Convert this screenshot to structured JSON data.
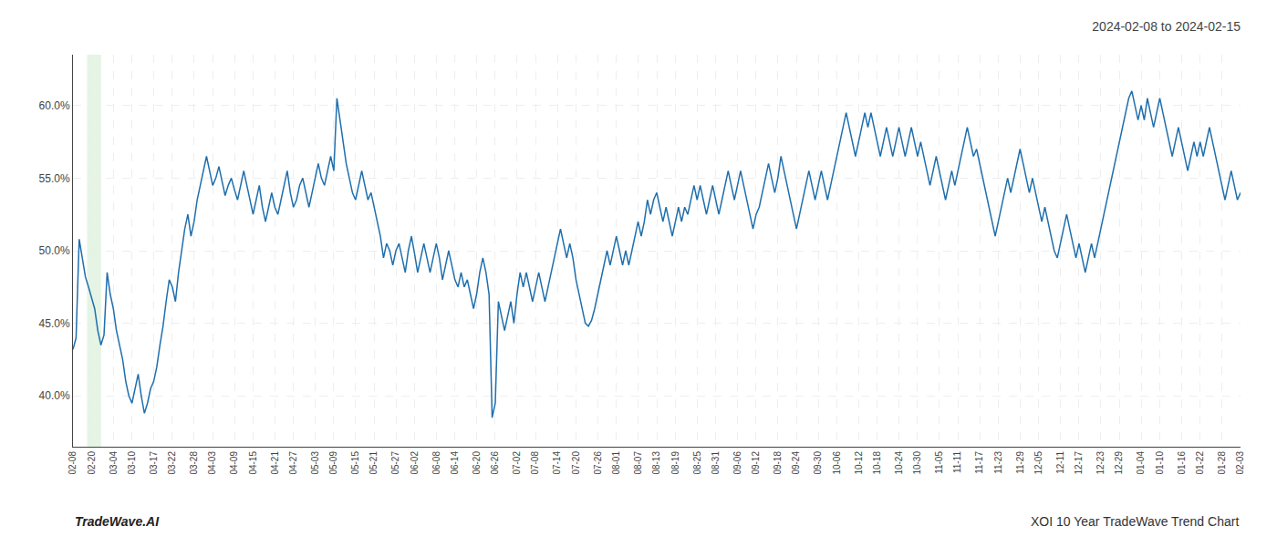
{
  "chart_data": {
    "type": "line",
    "title": "2024-02-08 to 2024-02-15",
    "annotations": [
      "TradeWave.AI",
      "XOI 10 Year TradeWave Trend Chart"
    ],
    "color": "#1f6fad",
    "grid": true,
    "ylim": [
      36.5,
      63.5
    ],
    "yticks": [
      {
        "value": 40.0,
        "label": "40.0%"
      },
      {
        "value": 45.0,
        "label": "45.0%"
      },
      {
        "value": 50.0,
        "label": "50.0%"
      },
      {
        "value": 55.0,
        "label": "55.0%"
      },
      {
        "value": 60.0,
        "label": "60.0%"
      }
    ],
    "shade": {
      "start": 4.537931034482759,
      "end": 9.07586206896552,
      "color": "#d4ecd4"
    },
    "categories": [
      "02-08",
      null,
      null,
      null,
      null,
      null,
      "02-20",
      null,
      null,
      null,
      null,
      null,
      null,
      "03-04",
      null,
      null,
      null,
      null,
      null,
      "03-10",
      null,
      null,
      null,
      null,
      null,
      null,
      "03-17",
      null,
      null,
      null,
      null,
      null,
      "03-22",
      null,
      null,
      null,
      null,
      null,
      null,
      "03-28",
      null,
      null,
      null,
      null,
      null,
      "04-03",
      null,
      null,
      null,
      null,
      null,
      null,
      "04-09",
      null,
      null,
      null,
      null,
      null,
      "04-15",
      null,
      null,
      null,
      null,
      null,
      null,
      "04-21",
      null,
      null,
      null,
      null,
      null,
      "04-27",
      null,
      null,
      null,
      null,
      null,
      null,
      "05-03",
      null,
      null,
      null,
      null,
      null,
      "05-09",
      null,
      null,
      null,
      null,
      null,
      null,
      "05-15",
      null,
      null,
      null,
      null,
      null,
      "05-21",
      null,
      null,
      null,
      null,
      null,
      null,
      "05-27",
      null,
      null,
      null,
      null,
      null,
      "06-02",
      null,
      null,
      null,
      null,
      null,
      null,
      "06-08",
      null,
      null,
      null,
      null,
      null,
      "06-14",
      null,
      null,
      null,
      null,
      null,
      null,
      "06-20",
      null,
      null,
      null,
      null,
      null,
      "06-26",
      null,
      null,
      null,
      null,
      null,
      null,
      "07-02",
      null,
      null,
      null,
      null,
      null,
      "07-08",
      null,
      null,
      null,
      null,
      null,
      null,
      "07-14",
      null,
      null,
      null,
      null,
      null,
      "07-20",
      null,
      null,
      null,
      null,
      null,
      null,
      "07-26",
      null,
      null,
      null,
      null,
      null,
      "08-01",
      null,
      null,
      null,
      null,
      null,
      null,
      "08-07",
      null,
      null,
      null,
      null,
      null,
      "08-13",
      null,
      null,
      null,
      null,
      null,
      "08-19",
      null,
      null,
      null,
      null,
      null,
      null,
      "08-25",
      null,
      null,
      null,
      null,
      null,
      "08-31",
      null,
      null,
      null,
      null,
      null,
      null,
      "09-06",
      null,
      null,
      null,
      null,
      null,
      "09-12",
      null,
      null,
      null,
      null,
      null,
      null,
      "09-18",
      null,
      null,
      null,
      null,
      null,
      "09-24",
      null,
      null,
      null,
      null,
      null,
      null,
      "09-30",
      null,
      null,
      null,
      null,
      null,
      "10-06",
      null,
      null,
      null,
      null,
      null,
      null,
      "10-12",
      null,
      null,
      null,
      null,
      null,
      "10-18",
      null,
      null,
      null,
      null,
      null,
      null,
      "10-24",
      null,
      null,
      null,
      null,
      null,
      "10-30",
      null,
      null,
      null,
      null,
      null,
      null,
      "11-05",
      null,
      null,
      null,
      null,
      null,
      "11-11",
      null,
      null,
      null,
      null,
      null,
      null,
      "11-17",
      null,
      null,
      null,
      null,
      null,
      "11-23",
      null,
      null,
      null,
      null,
      null,
      null,
      "11-29",
      null,
      null,
      null,
      null,
      null,
      "12-05",
      null,
      null,
      null,
      null,
      null,
      null,
      "12-11",
      null,
      null,
      null,
      null,
      null,
      "12-17",
      null,
      null,
      null,
      null,
      null,
      null,
      "12-23",
      null,
      null,
      null,
      null,
      null,
      "12-29",
      null,
      null,
      null,
      null,
      null,
      null,
      "01-04",
      null,
      null,
      null,
      null,
      null,
      "01-10",
      null,
      null,
      null,
      null,
      null,
      null,
      "01-16",
      null,
      null,
      null,
      null,
      null,
      "01-22",
      null,
      null,
      null,
      null,
      null,
      null,
      "01-28",
      null,
      null,
      null,
      null,
      null,
      "02-03"
    ],
    "values": [
      43.2,
      44.0,
      50.8,
      49.5,
      48.2,
      47.5,
      46.8,
      46.0,
      44.5,
      43.5,
      44.2,
      48.5,
      47.0,
      46.0,
      44.5,
      43.5,
      42.5,
      41.0,
      40.0,
      39.5,
      40.5,
      41.5,
      40.0,
      38.8,
      39.5,
      40.5,
      41.0,
      42.0,
      43.5,
      44.8,
      46.5,
      48.0,
      47.5,
      46.5,
      48.5,
      50.0,
      51.5,
      52.5,
      51.0,
      52.0,
      53.5,
      54.5,
      55.5,
      56.5,
      55.5,
      54.5,
      55.0,
      55.8,
      54.8,
      53.8,
      54.5,
      55.0,
      54.2,
      53.5,
      54.5,
      55.5,
      54.5,
      53.5,
      52.5,
      53.5,
      54.5,
      53.0,
      52.0,
      53.0,
      54.0,
      53.0,
      52.5,
      53.5,
      54.5,
      55.5,
      54.0,
      53.0,
      53.5,
      54.5,
      55.0,
      54.0,
      53.0,
      54.0,
      55.0,
      56.0,
      55.0,
      54.5,
      55.5,
      56.5,
      55.5,
      60.5,
      59.0,
      57.5,
      56.0,
      55.0,
      54.0,
      53.5,
      54.5,
      55.5,
      54.5,
      53.5,
      54.0,
      53.0,
      52.0,
      51.0,
      49.5,
      50.5,
      50.0,
      49.0,
      50.0,
      50.5,
      49.5,
      48.5,
      50.0,
      51.0,
      49.8,
      48.5,
      49.5,
      50.5,
      49.5,
      48.5,
      49.5,
      50.5,
      49.5,
      48.0,
      49.0,
      50.0,
      49.0,
      48.0,
      47.5,
      48.5,
      47.5,
      48.0,
      47.0,
      46.0,
      47.0,
      48.5,
      49.5,
      48.5,
      47.0,
      38.5,
      39.5,
      46.5,
      45.5,
      44.5,
      45.5,
      46.5,
      45.0,
      47.0,
      48.5,
      47.5,
      48.5,
      47.5,
      46.5,
      47.5,
      48.5,
      47.5,
      46.5,
      47.5,
      48.5,
      49.5,
      50.5,
      51.5,
      50.5,
      49.5,
      50.5,
      49.5,
      48.0,
      47.0,
      46.0,
      45.0,
      44.8,
      45.2,
      46.0,
      47.0,
      48.0,
      49.0,
      50.0,
      49.0,
      50.0,
      51.0,
      50.0,
      49.0,
      50.0,
      49.0,
      50.0,
      51.0,
      52.0,
      51.0,
      52.0,
      53.5,
      52.5,
      53.5,
      54.0,
      53.0,
      52.0,
      53.0,
      52.0,
      51.0,
      52.0,
      53.0,
      52.0,
      53.0,
      52.5,
      53.5,
      54.5,
      53.5,
      54.5,
      53.5,
      52.5,
      53.5,
      54.5,
      53.5,
      52.5,
      53.5,
      54.5,
      55.5,
      54.5,
      53.5,
      54.5,
      55.5,
      54.5,
      53.5,
      52.5,
      51.5,
      52.5,
      53.0,
      54.0,
      55.0,
      56.0,
      55.0,
      54.0,
      55.0,
      56.5,
      55.5,
      54.5,
      53.5,
      52.5,
      51.5,
      52.5,
      53.5,
      54.5,
      55.5,
      54.5,
      53.5,
      54.5,
      55.5,
      54.5,
      53.5,
      54.5,
      55.5,
      56.5,
      57.5,
      58.5,
      59.5,
      58.5,
      57.5,
      56.5,
      57.5,
      58.5,
      59.5,
      58.5,
      59.5,
      58.5,
      57.5,
      56.5,
      57.5,
      58.5,
      57.5,
      56.5,
      57.5,
      58.5,
      57.5,
      56.5,
      57.5,
      58.5,
      57.5,
      56.5,
      57.5,
      56.5,
      55.5,
      54.5,
      55.5,
      56.5,
      55.5,
      54.5,
      53.5,
      54.5,
      55.5,
      54.5,
      55.5,
      56.5,
      57.5,
      58.5,
      57.5,
      56.5,
      57.0,
      56.0,
      55.0,
      54.0,
      53.0,
      52.0,
      51.0,
      52.0,
      53.0,
      54.0,
      55.0,
      54.0,
      55.0,
      56.0,
      57.0,
      56.0,
      55.0,
      54.0,
      55.0,
      54.0,
      53.0,
      52.0,
      53.0,
      52.0,
      51.0,
      50.0,
      49.5,
      50.5,
      51.5,
      52.5,
      51.5,
      50.5,
      49.5,
      50.5,
      49.5,
      48.5,
      49.5,
      50.5,
      49.5,
      50.5,
      51.5,
      52.5,
      53.5,
      54.5,
      55.5,
      56.5,
      57.5,
      58.5,
      59.5,
      60.5,
      61.0,
      60.0,
      59.0,
      60.0,
      59.0,
      60.5,
      59.5,
      58.5,
      59.5,
      60.5,
      59.5,
      58.5,
      57.5,
      56.5,
      57.5,
      58.5,
      57.5,
      56.5,
      55.5,
      56.5,
      57.5,
      56.5,
      57.5,
      56.5,
      57.5,
      58.5,
      57.5,
      56.5,
      55.5,
      54.5,
      53.5,
      54.5,
      55.5,
      54.5,
      53.5,
      54.0
    ]
  }
}
